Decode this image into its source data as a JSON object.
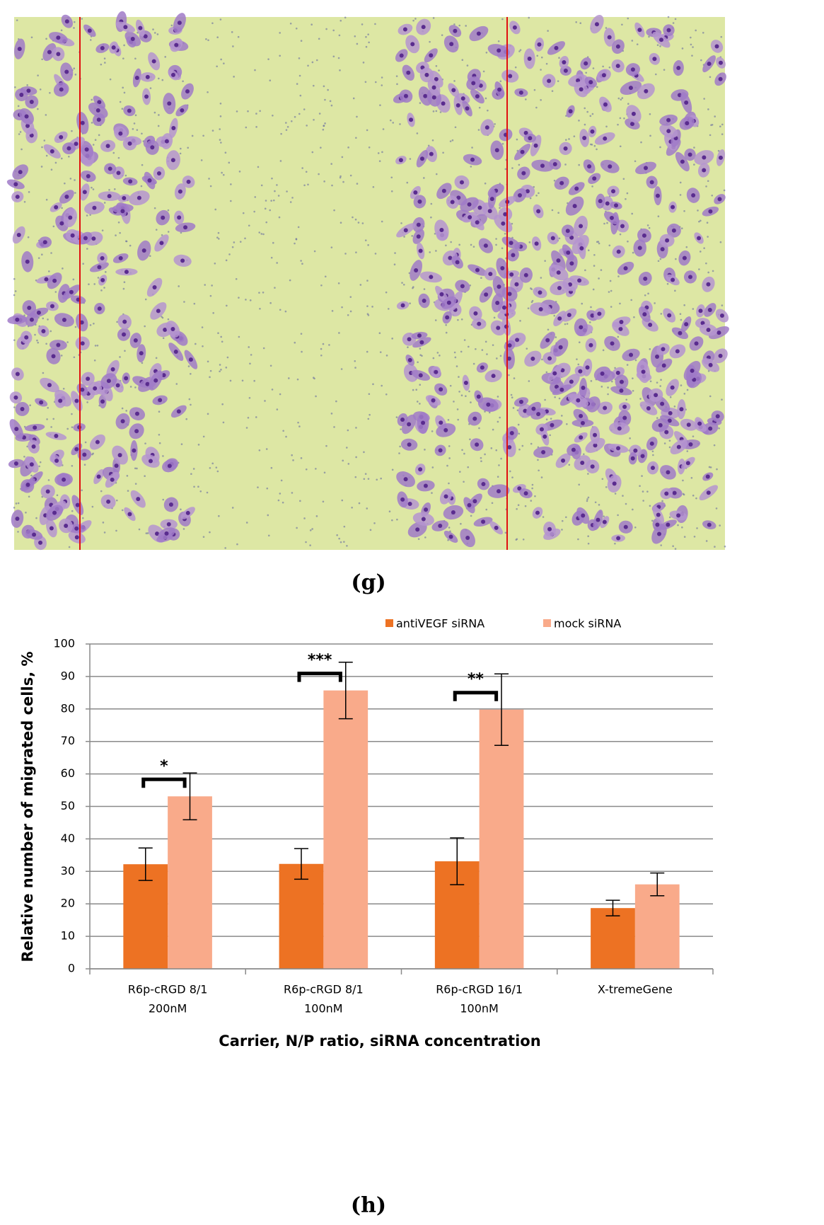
{
  "panels": [
    "(g)",
    "(h)"
  ],
  "chart_data": {
    "type": "bar",
    "ylabel": "Relative number of migrated cells, %",
    "xlabel": "Carrier, N/P ratio, siRNA concentration",
    "categories": [
      [
        "R6p-cRGD 8/1",
        "200nM"
      ],
      [
        "R6p-cRGD 8/1",
        "100nM"
      ],
      [
        "R6p-cRGD 16/1",
        "100nM"
      ],
      [
        "X-tremeGene"
      ]
    ],
    "series": [
      {
        "name": "antiVEGF siRNA",
        "color": "#ed7223",
        "values": [
          32.2,
          32.3,
          33.1,
          18.7
        ],
        "errors": [
          5,
          4.7,
          7.2,
          2.4
        ]
      },
      {
        "name": "mock siRNA",
        "color": "#f9aa8a",
        "values": [
          53.1,
          85.7,
          79.8,
          26
        ],
        "errors": [
          7.2,
          8.7,
          11,
          3.5
        ]
      }
    ],
    "annotations": [
      "*",
      "***",
      "**"
    ],
    "ylim": [
      0,
      100
    ],
    "yticks": [
      0,
      10,
      20,
      30,
      40,
      50,
      60,
      70,
      80,
      90,
      100
    ],
    "grid": true,
    "legend": "top"
  }
}
